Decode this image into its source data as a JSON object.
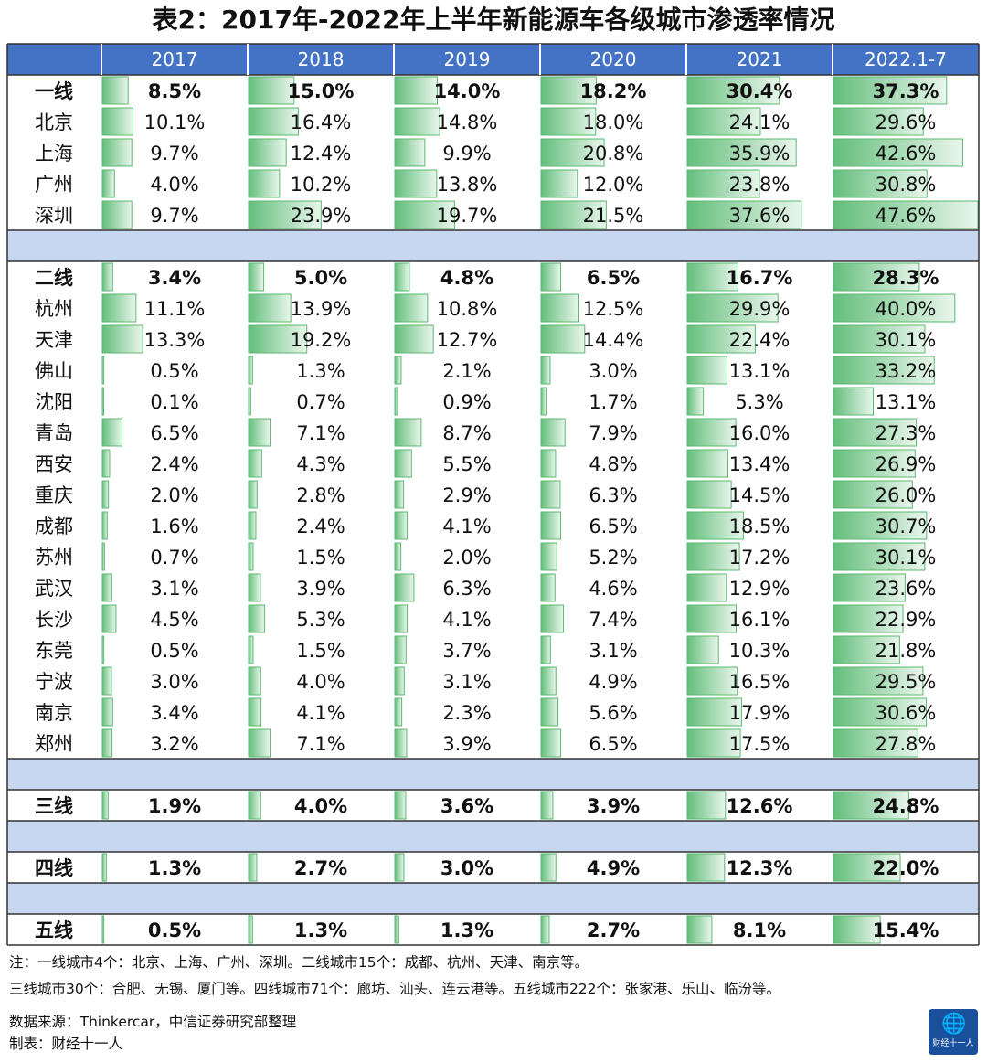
{
  "title": "表2：2017年-2022年上半年新能源车各级城市渗透率情况",
  "chart_data": {
    "type": "table",
    "columns": [
      "2017",
      "2018",
      "2019",
      "2020",
      "2021",
      "2022.1-7"
    ],
    "unit": "%",
    "groups": [
      {
        "rows": [
          {
            "label": "一线",
            "bold": true,
            "values": [
              8.5,
              15.0,
              14.0,
              18.2,
              30.4,
              37.3
            ]
          },
          {
            "label": "北京",
            "values": [
              10.1,
              16.4,
              14.8,
              18.0,
              24.1,
              29.6
            ]
          },
          {
            "label": "上海",
            "values": [
              9.7,
              12.4,
              9.9,
              20.8,
              35.9,
              42.6
            ]
          },
          {
            "label": "广州",
            "values": [
              4.0,
              10.2,
              13.8,
              12.0,
              23.8,
              30.8
            ]
          },
          {
            "label": "深圳",
            "values": [
              9.7,
              23.9,
              19.7,
              21.5,
              37.6,
              47.6
            ]
          }
        ]
      },
      {
        "rows": [
          {
            "label": "二线",
            "bold": true,
            "values": [
              3.4,
              5.0,
              4.8,
              6.5,
              16.7,
              28.3
            ]
          },
          {
            "label": "杭州",
            "values": [
              11.1,
              13.9,
              10.8,
              12.5,
              29.9,
              40.0
            ]
          },
          {
            "label": "天津",
            "values": [
              13.3,
              19.2,
              12.7,
              14.4,
              22.4,
              30.1
            ]
          },
          {
            "label": "佛山",
            "values": [
              0.5,
              1.3,
              2.1,
              3.0,
              13.1,
              33.2
            ]
          },
          {
            "label": "沈阳",
            "values": [
              0.1,
              0.7,
              0.9,
              1.7,
              5.3,
              13.1
            ]
          },
          {
            "label": "青岛",
            "values": [
              6.5,
              7.1,
              8.7,
              7.9,
              16.0,
              27.3
            ]
          },
          {
            "label": "西安",
            "values": [
              2.4,
              4.3,
              5.5,
              4.8,
              13.4,
              26.9
            ]
          },
          {
            "label": "重庆",
            "values": [
              2.0,
              2.8,
              2.9,
              6.3,
              14.5,
              26.0
            ]
          },
          {
            "label": "成都",
            "values": [
              1.6,
              2.4,
              4.1,
              6.5,
              18.5,
              30.7
            ]
          },
          {
            "label": "苏州",
            "values": [
              0.7,
              1.5,
              2.0,
              5.2,
              17.2,
              30.1
            ]
          },
          {
            "label": "武汉",
            "values": [
              3.1,
              3.9,
              6.3,
              4.6,
              12.9,
              23.6
            ]
          },
          {
            "label": "长沙",
            "values": [
              4.5,
              5.3,
              4.1,
              7.4,
              16.1,
              22.9
            ]
          },
          {
            "label": "东莞",
            "values": [
              0.5,
              1.5,
              3.7,
              3.1,
              10.3,
              21.8
            ]
          },
          {
            "label": "宁波",
            "values": [
              3.0,
              4.0,
              3.1,
              4.9,
              16.5,
              29.5
            ]
          },
          {
            "label": "南京",
            "values": [
              3.4,
              4.1,
              2.3,
              5.6,
              17.9,
              30.6
            ]
          },
          {
            "label": "郑州",
            "values": [
              3.2,
              7.1,
              3.9,
              6.5,
              17.5,
              27.8
            ]
          }
        ]
      },
      {
        "rows": [
          {
            "label": "三线",
            "bold": true,
            "values": [
              1.9,
              4.0,
              3.6,
              3.9,
              12.6,
              24.8
            ]
          }
        ]
      },
      {
        "rows": [
          {
            "label": "四线",
            "bold": true,
            "values": [
              1.3,
              2.7,
              3.0,
              4.9,
              12.3,
              22.0
            ]
          }
        ]
      },
      {
        "rows": [
          {
            "label": "五线",
            "bold": true,
            "values": [
              0.5,
              1.3,
              1.3,
              2.7,
              8.1,
              15.4
            ]
          }
        ]
      }
    ]
  },
  "notes": {
    "line1": "注：一线城市4个：北京、上海、广州、深圳。二线城市15个：成都、杭州、天津、南京等。",
    "line2": "三线城市30个：合肥、无锡、厦门等。四线城市71个：廊坊、汕头、连云港等。五线城市222个：张家港、乐山、临汾等。",
    "source": "数据来源：Thinkercar，中信证券研究部整理",
    "maker": "制表：财经十一人"
  },
  "logo": {
    "icon": "globe-bird-icon",
    "text": "财经十一人"
  },
  "colors": {
    "header_bg": "#4472c4",
    "header_text": "#ffffff",
    "spacer_bg": "#c6d7ef",
    "bar_dark": "#63be7b",
    "bar_light": "#e9f6ec",
    "bar_border": "#5cb870"
  }
}
